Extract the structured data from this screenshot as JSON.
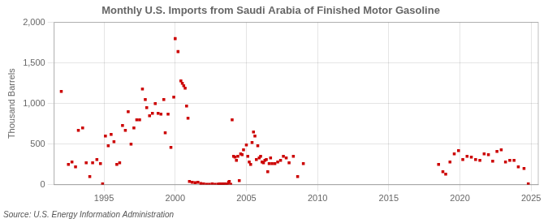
{
  "chart_data": {
    "type": "scatter",
    "title": "Monthly U.S. Imports from Saudi Arabia of Finished Motor Gasoline",
    "ylabel": "Thousand Barrels",
    "source": "Source: U.S. Energy Information Administration",
    "color": "#cc0000",
    "marker": "square",
    "grid": true,
    "xlim": [
      1991.5,
      2025.5
    ],
    "xticks": [
      1995,
      2000,
      2005,
      2010,
      2015,
      2020,
      2025
    ],
    "ylim": [
      0,
      2000
    ],
    "yticks": [
      0,
      500,
      {
        "value": 1000,
        "label": "1,000"
      },
      {
        "value": 1500,
        "label": "1,500"
      },
      {
        "value": 2000,
        "label": "2,000"
      }
    ],
    "x": [
      1992.0,
      1992.5,
      1992.75,
      1993.0,
      1993.2,
      1993.5,
      1993.75,
      1994.0,
      1994.2,
      1994.5,
      1994.75,
      1994.9,
      1995.1,
      1995.3,
      1995.5,
      1995.7,
      1995.9,
      1996.1,
      1996.3,
      1996.5,
      1996.7,
      1996.9,
      1997.1,
      1997.3,
      1997.5,
      1997.7,
      1997.9,
      1998.0,
      1998.2,
      1998.4,
      1998.6,
      1998.8,
      1999.0,
      1999.2,
      1999.3,
      1999.5,
      1999.7,
      1999.9,
      2000.0,
      2000.2,
      2000.4,
      2000.5,
      2000.6,
      2000.7,
      2000.8,
      2000.9,
      2001.0,
      2001.2,
      2001.4,
      2001.6,
      2001.8,
      2002.0,
      2002.2,
      2002.4,
      2002.6,
      2002.8,
      2003.0,
      2003.05,
      2003.1,
      2003.15,
      2003.2,
      2003.3,
      2003.35,
      2003.4,
      2003.5,
      2003.6,
      2003.7,
      2003.75,
      2003.8,
      2003.9,
      2004.0,
      2004.1,
      2004.2,
      2004.3,
      2004.4,
      2004.5,
      2004.6,
      2004.7,
      2004.8,
      2005.0,
      2005.1,
      2005.2,
      2005.3,
      2005.4,
      2005.5,
      2005.6,
      2005.7,
      2005.8,
      2005.9,
      2006.0,
      2006.1,
      2006.2,
      2006.3,
      2006.4,
      2006.5,
      2006.6,
      2006.7,
      2006.8,
      2007.0,
      2007.2,
      2007.4,
      2007.6,
      2007.8,
      2008.0,
      2008.3,
      2008.6,
      2009.0,
      2018.5,
      2018.8,
      2019.0,
      2019.3,
      2019.6,
      2019.9,
      2020.2,
      2020.5,
      2020.8,
      2021.1,
      2021.4,
      2021.7,
      2022.0,
      2022.3,
      2022.6,
      2022.9,
      2023.2,
      2023.5,
      2023.8,
      2024.1,
      2024.5,
      2024.8
    ],
    "values": [
      1150,
      250,
      280,
      220,
      670,
      700,
      270,
      100,
      270,
      310,
      260,
      10,
      600,
      480,
      620,
      530,
      250,
      270,
      730,
      670,
      900,
      500,
      700,
      800,
      800,
      1180,
      1050,
      950,
      850,
      880,
      1000,
      880,
      870,
      1050,
      640,
      870,
      460,
      1080,
      1800,
      1640,
      1280,
      1250,
      1220,
      1190,
      970,
      820,
      40,
      30,
      25,
      30,
      15,
      10,
      5,
      5,
      10,
      5,
      5,
      5,
      5,
      10,
      5,
      5,
      10,
      5,
      10,
      5,
      5,
      30,
      40,
      5,
      800,
      350,
      340,
      300,
      350,
      50,
      380,
      370,
      430,
      490,
      350,
      280,
      250,
      520,
      650,
      600,
      310,
      480,
      330,
      350,
      280,
      270,
      300,
      310,
      160,
      260,
      330,
      260,
      260,
      280,
      300,
      350,
      330,
      270,
      350,
      100,
      260,
      250,
      160,
      130,
      280,
      380,
      420,
      310,
      350,
      340,
      310,
      300,
      380,
      370,
      290,
      410,
      430,
      280,
      300,
      300,
      220,
      200,
      10
    ]
  }
}
